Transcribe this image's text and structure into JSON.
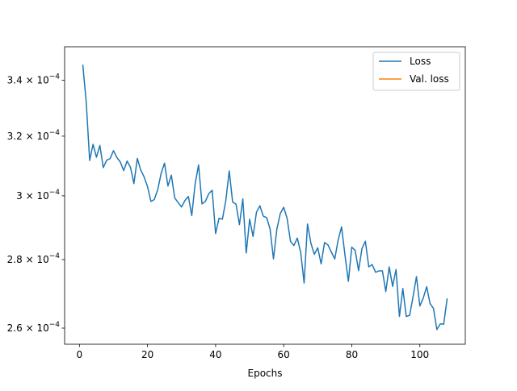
{
  "chart_data": {
    "type": "line",
    "title": "",
    "xlabel": "Epochs",
    "ylabel": "",
    "xlim": [
      -4.35,
      113.35
    ],
    "ylim": [
      0.0002555,
      0.0003525
    ],
    "xticks": [
      0,
      20,
      40,
      60,
      80,
      100
    ],
    "xtick_labels": [
      "0",
      "20",
      "40",
      "60",
      "80",
      "100"
    ],
    "yticks": [
      0.00026,
      0.00028,
      0.0003,
      0.00032,
      0.00034
    ],
    "ytick_labels": [
      {
        "mantissa": "2.6",
        "exp": "−4"
      },
      {
        "mantissa": "2.8",
        "exp": "−4"
      },
      {
        "mantissa": "3",
        "exp": "−4"
      },
      {
        "mantissa": "3.2",
        "exp": "−4"
      },
      {
        "mantissa": "3.4",
        "exp": "−4"
      }
    ],
    "y_scale": "log",
    "grid": false,
    "legend_position": "top-right",
    "series": [
      {
        "name": "Loss",
        "color": "#1f77b4",
        "x": [
          1,
          2,
          3,
          4,
          5,
          6,
          7,
          8,
          9,
          10,
          11,
          12,
          13,
          14,
          15,
          16,
          17,
          18,
          19,
          20,
          21,
          22,
          23,
          24,
          25,
          26,
          27,
          28,
          29,
          30,
          31,
          32,
          33,
          34,
          35,
          36,
          37,
          38,
          39,
          40,
          41,
          42,
          43,
          44,
          45,
          46,
          47,
          48,
          49,
          50,
          51,
          52,
          53,
          54,
          55,
          56,
          57,
          58,
          59,
          60,
          61,
          62,
          63,
          64,
          65,
          66,
          67,
          68,
          69,
          70,
          71,
          72,
          73,
          74,
          75,
          76,
          77,
          78,
          79,
          80,
          81,
          82,
          83,
          84,
          85,
          86,
          87,
          88,
          89,
          90,
          91,
          92,
          93,
          94,
          95,
          96,
          97,
          98,
          99,
          100,
          101,
          102,
          103,
          104,
          105,
          106,
          107,
          108
        ],
        "values": [
          0.0003455,
          0.000332,
          0.0003117,
          0.0003172,
          0.0003128,
          0.0003168,
          0.0003093,
          0.0003118,
          0.0003123,
          0.000315,
          0.0003127,
          0.0003112,
          0.0003083,
          0.0003115,
          0.0003094,
          0.000304,
          0.0003124,
          0.0003085,
          0.0003062,
          0.000303,
          0.0002982,
          0.0002988,
          0.000302,
          0.0003074,
          0.0003108,
          0.0003032,
          0.0003068,
          0.0002993,
          0.0002978,
          0.0002964,
          0.0002985,
          0.0002998,
          0.0002937,
          0.000304,
          0.0003102,
          0.0002974,
          0.0002982,
          0.0003007,
          0.0003018,
          0.000288,
          0.0002928,
          0.0002925,
          0.0002985,
          0.0003082,
          0.000298,
          0.0002973,
          0.0002908,
          0.000299,
          0.000282,
          0.0002925,
          0.0002871,
          0.0002947,
          0.0002968,
          0.0002935,
          0.000293,
          0.0002894,
          0.0002802,
          0.0002894,
          0.0002943,
          0.0002963,
          0.0002928,
          0.0002856,
          0.0002843,
          0.0002866,
          0.0002822,
          0.000273,
          0.000291,
          0.000285,
          0.0002816,
          0.0002836,
          0.0002787,
          0.0002852,
          0.0002845,
          0.0002823,
          0.0002802,
          0.000286,
          0.0002901,
          0.0002814,
          0.0002735,
          0.0002838,
          0.0002828,
          0.0002767,
          0.0002834,
          0.0002856,
          0.0002778,
          0.0002785,
          0.0002762,
          0.0002766,
          0.0002766,
          0.0002705,
          0.0002778,
          0.000272,
          0.000277,
          0.0002633,
          0.0002714,
          0.0002633,
          0.0002636,
          0.000269,
          0.0002749,
          0.0002663,
          0.0002686,
          0.0002719,
          0.000267,
          0.0002656,
          0.0002596,
          0.0002612,
          0.0002611,
          0.0002683
        ]
      },
      {
        "name": "Val. loss",
        "color": "#ff7f0e",
        "x": [],
        "values": []
      }
    ]
  }
}
